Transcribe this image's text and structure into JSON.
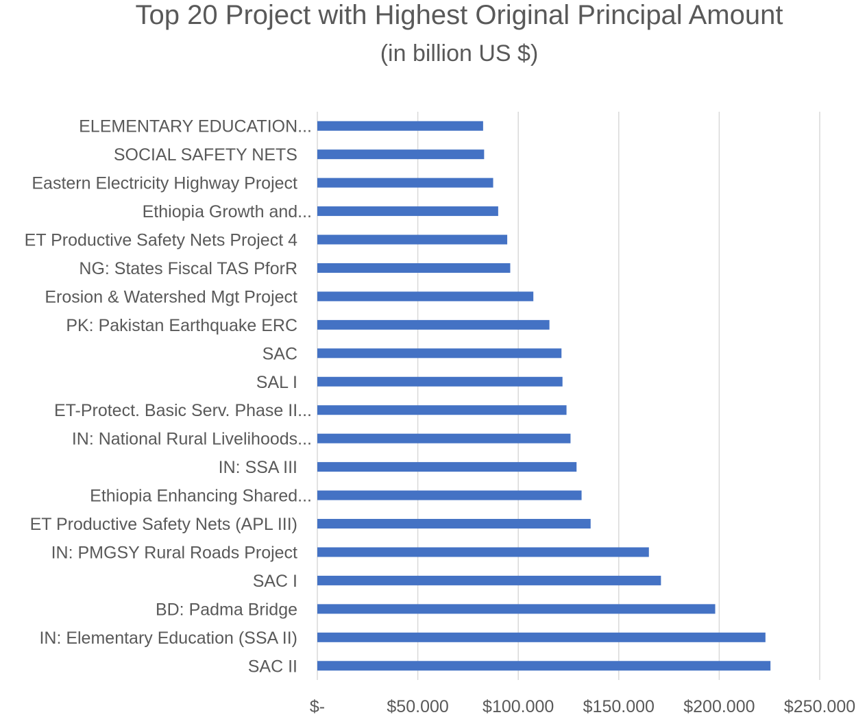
{
  "chart_data": {
    "type": "bar",
    "orientation": "horizontal",
    "title": "Top 20 Project with Highest Original Principal Amount",
    "subtitle": "(in billion US $)",
    "xlabel": "",
    "ylabel": "",
    "xlim": [
      0,
      250
    ],
    "x_ticks": [
      0,
      50,
      100,
      150,
      200,
      250
    ],
    "x_tick_labels": [
      "$-",
      "$50.000",
      "$100.000",
      "$150.000",
      "$200.000",
      "$250.000"
    ],
    "grid": true,
    "legend": "none",
    "bar_color": "#4472c4",
    "categories": [
      "ELEMENTARY EDUCATION...",
      "SOCIAL SAFETY NETS",
      "Eastern Electricity Highway Project",
      "Ethiopia Growth and...",
      "ET Productive Safety Nets Project 4",
      "NG: States Fiscal TAS PforR",
      "Erosion & Watershed Mgt Project",
      "PK: Pakistan Earthquake ERC",
      "SAC",
      "SAL I",
      "ET-Protect. Basic Serv. Phase II...",
      "IN: National Rural Livelihoods...",
      "IN: SSA III",
      "Ethiopia Enhancing Shared...",
      "ET Productive Safety Nets (APL III)",
      "IN: PMGSY Rural Roads Project",
      "SAC I",
      "BD: Padma Bridge",
      "IN: Elementary Education (SSA II)",
      "SAC II"
    ],
    "values": [
      82.5,
      83.0,
      87.5,
      90.0,
      94.5,
      96.0,
      107.5,
      115.5,
      121.5,
      122.0,
      124.0,
      126.0,
      129.0,
      131.5,
      136.0,
      165.0,
      171.0,
      198.0,
      223.0,
      225.5
    ]
  }
}
